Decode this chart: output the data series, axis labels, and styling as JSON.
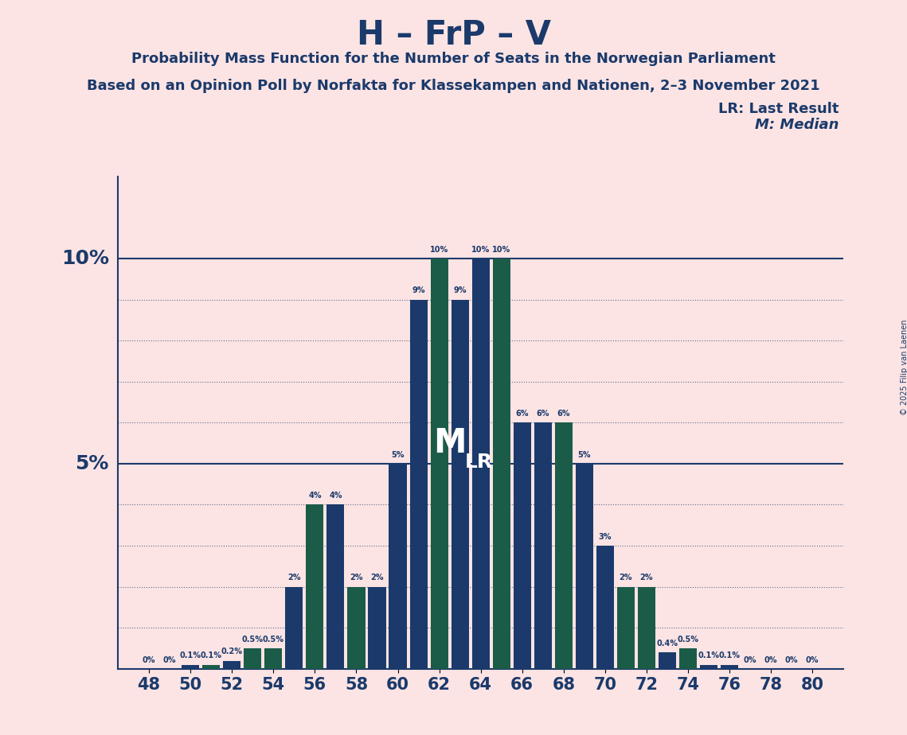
{
  "title": "H – FrP – V",
  "subtitle1": "Probability Mass Function for the Number of Seats in the Norwegian Parliament",
  "subtitle2": "Based on an Opinion Poll by Norfakta for Klassekampen and Nationen, 2–3 November 2021",
  "copyright": "© 2025 Filip van Laenen",
  "seats_all": [
    48,
    49,
    50,
    51,
    52,
    53,
    54,
    55,
    56,
    57,
    58,
    59,
    60,
    61,
    62,
    63,
    64,
    65,
    66,
    67,
    68,
    69,
    70,
    71,
    72,
    73,
    74,
    75,
    76,
    77,
    78,
    79,
    80
  ],
  "probs_all": [
    0.0,
    0.0,
    0.1,
    0.1,
    0.2,
    0.5,
    0.5,
    2.0,
    4.0,
    4.0,
    2.0,
    2.0,
    5.0,
    9.0,
    10.0,
    9.0,
    10.0,
    10.0,
    6.0,
    6.0,
    6.0,
    5.0,
    3.0,
    2.0,
    2.0,
    0.4,
    0.5,
    0.1,
    0.1,
    0.0,
    0.0,
    0.0,
    0.0
  ],
  "colors": [
    "blue",
    "green",
    "blue",
    "green",
    "blue",
    "green",
    "green",
    "blue",
    "green",
    "blue",
    "green",
    "blue",
    "blue",
    "blue",
    "green",
    "blue",
    "blue",
    "green",
    "blue",
    "blue",
    "green",
    "blue",
    "blue",
    "green",
    "green",
    "blue",
    "green",
    "blue",
    "blue",
    "green",
    "blue",
    "green",
    "blue"
  ],
  "blue": "#1b3a6b",
  "green": "#1b5c48",
  "background_color": "#fce4e4",
  "median_seat": 63,
  "lr_seat": 64,
  "lr_legend": "LR: Last Result",
  "m_legend": "M: Median",
  "ylim": [
    0,
    12
  ]
}
